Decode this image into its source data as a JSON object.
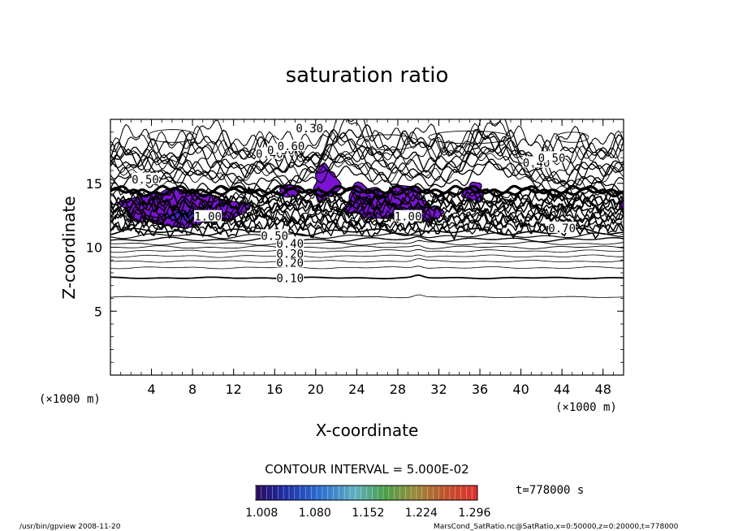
{
  "chart_data": {
    "type": "contour",
    "title": "saturation ratio",
    "xlabel": "X-coordinate",
    "ylabel": "Z-coordinate",
    "x_unit_left": "(×1000 m)",
    "x_unit_right": "(×1000 m)",
    "xlim": [
      0,
      50
    ],
    "ylim": [
      0,
      20
    ],
    "x_ticks": [
      "4",
      "8",
      "12",
      "16",
      "20",
      "24",
      "28",
      "32",
      "36",
      "40",
      "44",
      "48"
    ],
    "x_tick_values": [
      4,
      8,
      12,
      16,
      20,
      24,
      28,
      32,
      36,
      40,
      44,
      48
    ],
    "y_ticks": [
      "5",
      "10",
      "15"
    ],
    "y_tick_values": [
      5,
      10,
      15
    ],
    "contour_interval_text": "CONTOUR INTERVAL = 5.000E-02",
    "contour_labels": [
      {
        "text": "0.10",
        "x": 17.5,
        "y": 7.6
      },
      {
        "text": "0.20",
        "x": 17.5,
        "y": 8.8
      },
      {
        "text": "0.20",
        "x": 17.5,
        "y": 9.5
      },
      {
        "text": "0.40",
        "x": 17.5,
        "y": 10.3
      },
      {
        "text": "0.50",
        "x": 16.0,
        "y": 10.9
      },
      {
        "text": "0.30",
        "x": 19.4,
        "y": 19.3
      },
      {
        "text": "0.40",
        "x": 15.5,
        "y": 17.3
      },
      {
        "text": "0.50",
        "x": 16.6,
        "y": 17.6
      },
      {
        "text": "0.60",
        "x": 17.6,
        "y": 17.9
      },
      {
        "text": "0.50",
        "x": 3.4,
        "y": 15.3
      },
      {
        "text": "0.40",
        "x": 41.5,
        "y": 16.6
      },
      {
        "text": "0.50",
        "x": 43.0,
        "y": 17.0
      },
      {
        "text": "1.00",
        "x": 9.5,
        "y": 12.4
      },
      {
        "text": "1.00",
        "x": 29.0,
        "y": 12.4
      },
      {
        "text": "0.70",
        "x": 44.0,
        "y": 11.5
      }
    ],
    "colorbar": {
      "ticks": [
        "1.008",
        "1.080",
        "1.152",
        "1.224",
        "1.296"
      ],
      "tick_values": [
        1.008,
        1.08,
        1.152,
        1.224,
        1.296
      ],
      "range": [
        1.0,
        1.3
      ]
    },
    "time_label": "t=778000 s"
  },
  "footer": {
    "left": "/usr/bin/gpview  2008-11-20",
    "right": "MarsCond_SatRatio.nc@SatRatio,x=0:50000,z=0:20000,t=778000"
  },
  "colors": {
    "fill_main": "#7a14d2",
    "fill_dark": "#3a2ab8",
    "contour": "#000000"
  }
}
